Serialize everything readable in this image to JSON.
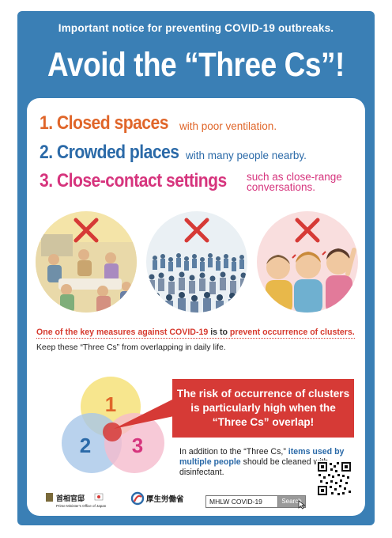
{
  "notice": "Important notice for preventing COVID-19 outbreaks.",
  "title": "Avoid the “Three Cs”!",
  "three_cs": [
    {
      "head": "1. Closed spaces",
      "tail": "with poor ventilation."
    },
    {
      "head": "2. Crowded places",
      "tail": "with many people nearby."
    },
    {
      "head": "3. Close-contact settings",
      "tail": "such as close-range conversations."
    }
  ],
  "key_measure": {
    "part1": "One of the key measures against COVID-19",
    "part2": " is to ",
    "part3": "prevent occurrence of clusters."
  },
  "keep_text": "Keep these “Three Cs” from overlapping in daily life.",
  "venn": {
    "labels": [
      "1",
      "2",
      "3"
    ]
  },
  "risk_text": "The risk of occurrence of clusters is particularly high when the “Three Cs” overlap!",
  "extra": {
    "part1": "In addition to the “Three Cs,” ",
    "part2": "items used by multiple people",
    "part3": " should be cleaned with disinfectant."
  },
  "footer": {
    "logo1_text": "首相官邸",
    "logo1_sub": "Prime Minister's Office of Japan",
    "logo2_text": "厚生労働省",
    "search_value": "MHLW COVID-19",
    "search_button": "Search"
  },
  "colors": {
    "frame": "#3a7fb5",
    "orange": "#e0662a",
    "blue": "#2b6aa8",
    "pink": "#d6347d",
    "red": "#d63a36"
  }
}
